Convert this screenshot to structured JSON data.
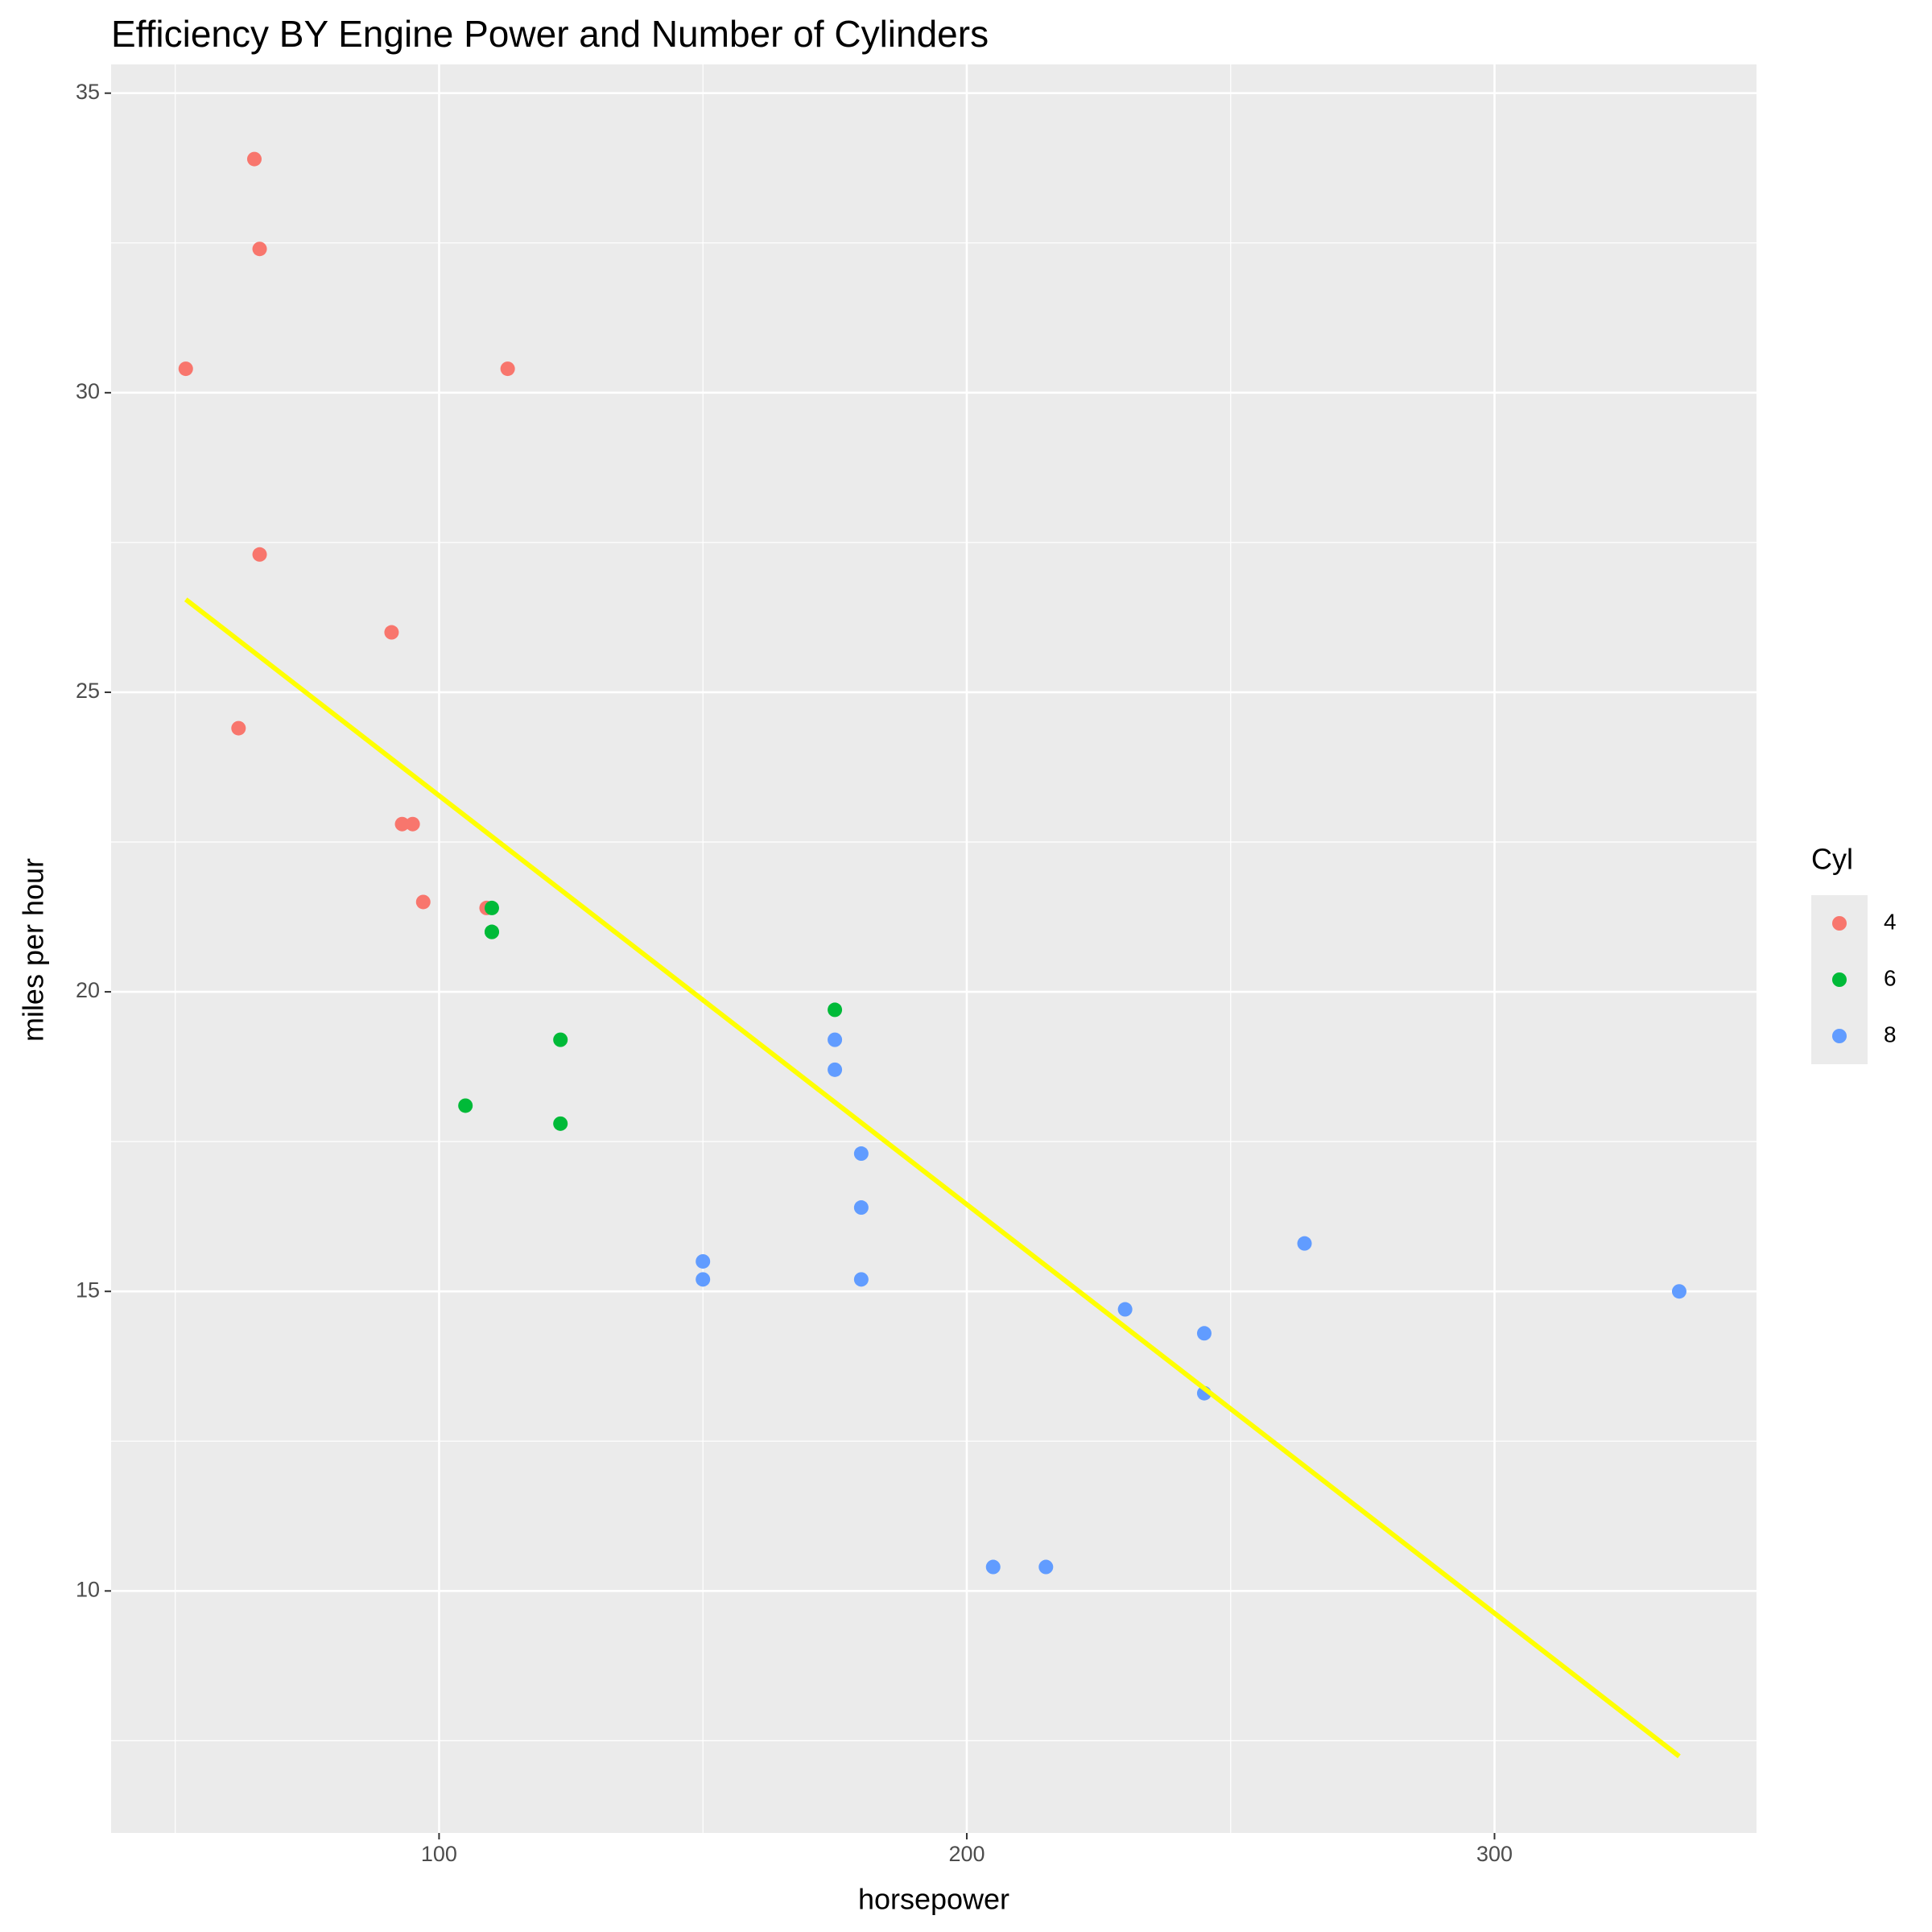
{
  "chart_data": {
    "type": "scatter",
    "title": "Efficiency BY Engine Power and Number of Cylinders",
    "x_label": "horsepower",
    "y_label": "miles per hour",
    "legend_title": "Cyl",
    "legend": "right",
    "xlim": [
      37.85,
      349.65
    ],
    "ylim": [
      5.96,
      35.48
    ],
    "xticks": [
      100,
      200,
      300
    ],
    "yticks": [
      10,
      15,
      20,
      25,
      30,
      35
    ],
    "x_minor_grid": [
      50,
      150,
      250
    ],
    "y_minor_grid": [
      7.5,
      12.5,
      17.5,
      22.5,
      27.5,
      32.5
    ],
    "grid": true,
    "series": [
      {
        "name": "4",
        "color": "#F8766D",
        "x": [
          93,
          62,
          95,
          66,
          52,
          65,
          97,
          66,
          91,
          113,
          109
        ],
        "values": [
          22.8,
          24.4,
          22.8,
          32.4,
          30.4,
          33.9,
          21.5,
          27.3,
          26.0,
          30.4,
          21.4
        ]
      },
      {
        "name": "6",
        "color": "#00BA38",
        "x": [
          110,
          110,
          110,
          105,
          123,
          123,
          175
        ],
        "values": [
          21.0,
          21.0,
          21.4,
          18.1,
          19.2,
          17.8,
          19.7
        ]
      },
      {
        "name": "8",
        "color": "#619CFF",
        "x": [
          175,
          245,
          180,
          180,
          180,
          205,
          215,
          230,
          150,
          150,
          245,
          175,
          264,
          335
        ],
        "values": [
          18.7,
          14.3,
          16.4,
          17.3,
          15.2,
          10.4,
          10.4,
          14.7,
          15.5,
          15.2,
          13.3,
          19.2,
          15.8,
          15.0
        ]
      }
    ],
    "fit": {
      "color": "#FFFF00",
      "x": [
        52,
        335
      ],
      "y": [
        26.55,
        7.24
      ]
    }
  }
}
